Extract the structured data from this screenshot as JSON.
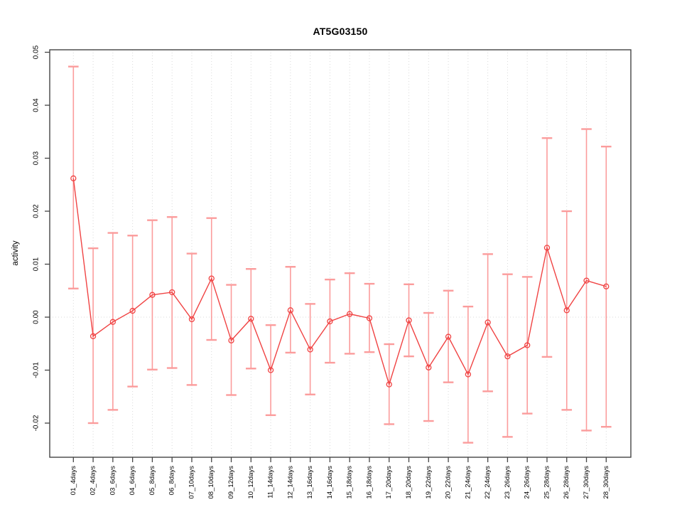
{
  "chart_data": {
    "type": "line",
    "title": "AT5G03150",
    "xlabel": "",
    "ylabel": "activity",
    "legend": null,
    "grid": "vertical-dotted-per-category-plus-dotted-zero-line",
    "ylim": [
      -0.0265,
      0.0505
    ],
    "yticks": [
      0.05,
      0.04,
      0.03,
      0.02,
      0.01,
      0.0,
      -0.01,
      -0.02
    ],
    "categories": [
      "01_4days",
      "02_4days",
      "03_6days",
      "04_6days",
      "05_8days",
      "06_8days",
      "07_10days",
      "08_10days",
      "09_12days",
      "10_12days",
      "11_14days",
      "12_14days",
      "13_16days",
      "14_16days",
      "15_18days",
      "16_18days",
      "17_20days",
      "18_20days",
      "19_22days",
      "20_22days",
      "21_24days",
      "22_24days",
      "23_26days",
      "24_26days",
      "25_28days",
      "26_28days",
      "27_30days",
      "28_30days"
    ],
    "series": [
      {
        "name": "activity",
        "marker": "open-circle",
        "values": [
          0.0262,
          -0.0036,
          -0.0009,
          0.0012,
          0.0042,
          0.0047,
          -0.0004,
          0.0073,
          -0.0044,
          -0.0003,
          -0.01,
          0.0013,
          -0.0061,
          -0.0008,
          0.0006,
          -0.0002,
          -0.0127,
          -0.0006,
          -0.0095,
          -0.0037,
          -0.0108,
          -0.001,
          -0.0074,
          -0.0053,
          0.0131,
          0.0013,
          0.0069,
          0.0058
        ],
        "error_upper": [
          0.0473,
          0.013,
          0.0159,
          0.0154,
          0.0183,
          0.0189,
          0.012,
          0.0187,
          0.0061,
          0.0091,
          -0.0015,
          0.0095,
          0.0025,
          0.0071,
          0.0083,
          0.0063,
          -0.0051,
          0.0062,
          0.0008,
          0.005,
          0.002,
          0.0119,
          0.0081,
          0.0076,
          0.0338,
          0.02,
          0.0355,
          0.0322
        ],
        "error_lower": [
          0.0054,
          -0.02,
          -0.0175,
          -0.0131,
          -0.0099,
          -0.0096,
          -0.0128,
          -0.0043,
          -0.0147,
          -0.0097,
          -0.0185,
          -0.0067,
          -0.0146,
          -0.0086,
          -0.0069,
          -0.0066,
          -0.0202,
          -0.0074,
          -0.0196,
          -0.0123,
          -0.0237,
          -0.014,
          -0.0226,
          -0.0182,
          -0.0075,
          -0.0175,
          -0.0214,
          -0.0207
        ]
      }
    ],
    "colors": {
      "line": "#f04343",
      "marker": "#f04343",
      "error_bar": "#fb9c9c",
      "grid": "#d9d9d9",
      "axis": "#454545",
      "text": "#000000",
      "background": "#ffffff"
    }
  }
}
